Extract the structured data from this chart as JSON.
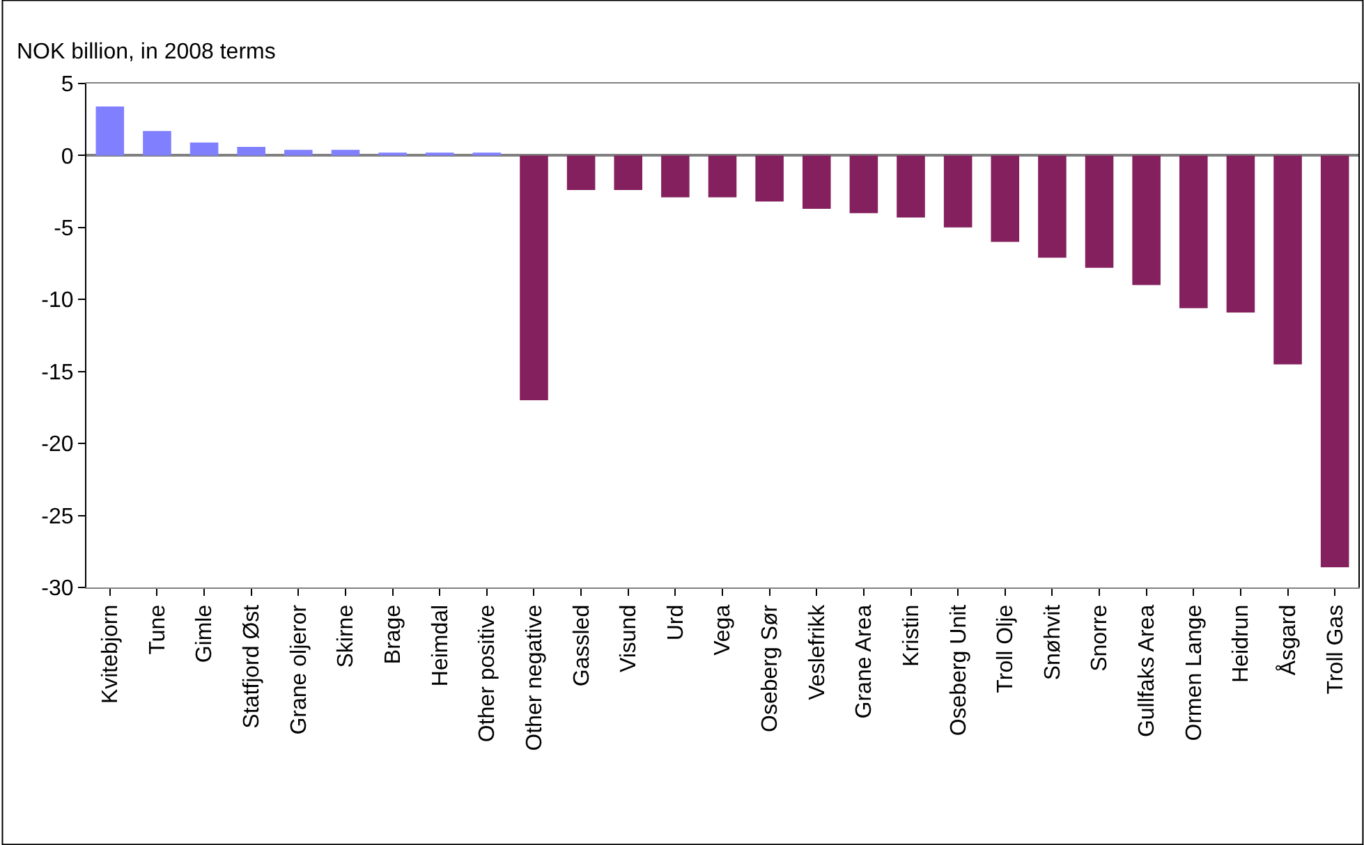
{
  "chart_data": {
    "type": "bar",
    "ylabel": "NOK billion, in 2008 terms",
    "categories": [
      "Kvitebjorn",
      "Tune",
      "Gimle",
      "Statfjord Øst",
      "Grane oljeror",
      "Skirne",
      "Brage",
      "Heimdal",
      "Other positive",
      "Other negative",
      "Gassled",
      "Visund",
      "Urd",
      "Vega",
      "Oseberg Sør",
      "Veslefrikk",
      "Grane Area",
      "Kristin",
      "Oseberg Unit",
      "Troll Olje",
      "Snøhvit",
      "Snorre",
      "Gullfaks Area",
      "Ormen Lange",
      "Heidrun",
      "Åsgard",
      "Troll Gas"
    ],
    "values": [
      3.4,
      1.7,
      0.9,
      0.6,
      0.4,
      0.4,
      0.2,
      0.2,
      0.2,
      -17.0,
      -2.4,
      -2.4,
      -2.9,
      -2.9,
      -3.2,
      -3.7,
      -4.0,
      -4.3,
      -5.0,
      -6.0,
      -7.1,
      -7.8,
      -9.0,
      -10.6,
      -10.9,
      -14.5,
      -28.6
    ],
    "colors": [
      "#8080ff",
      "#8080ff",
      "#8080ff",
      "#8080ff",
      "#8080ff",
      "#8080ff",
      "#8080ff",
      "#8080ff",
      "#8080ff",
      "#84205e",
      "#84205e",
      "#84205e",
      "#84205e",
      "#84205e",
      "#84205e",
      "#84205e",
      "#84205e",
      "#84205e",
      "#84205e",
      "#84205e",
      "#84205e",
      "#84205e",
      "#84205e",
      "#84205e",
      "#84205e",
      "#84205e",
      "#84205e"
    ],
    "ylim": [
      -30,
      5
    ],
    "yticks": [
      5,
      0,
      -5,
      -10,
      -15,
      -20,
      -25,
      -30
    ]
  }
}
